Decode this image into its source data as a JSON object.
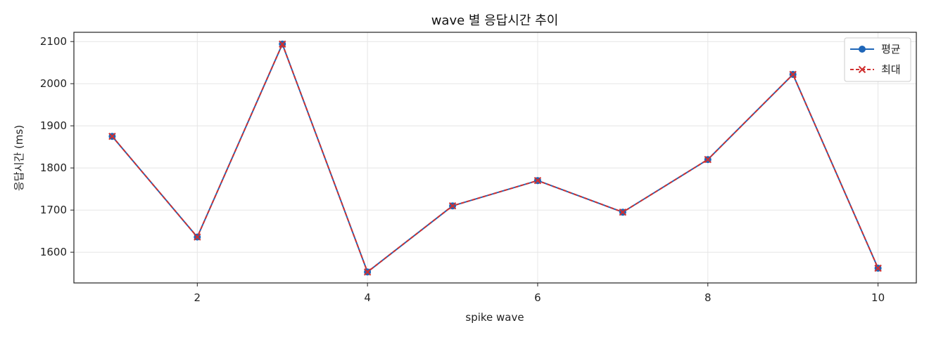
{
  "chart_data": {
    "type": "line",
    "title": "wave 별 응답시간 추이",
    "xlabel": "spike wave",
    "ylabel": "응답시간 (ms)",
    "x": [
      1,
      2,
      3,
      4,
      5,
      6,
      7,
      8,
      9,
      10
    ],
    "xlim": [
      0.55,
      10.45
    ],
    "ylim": [
      1527,
      2122
    ],
    "xticks": [
      2,
      4,
      6,
      8,
      10
    ],
    "yticks": [
      1600,
      1700,
      1800,
      1900,
      2000,
      2100
    ],
    "grid": true,
    "legend_position": "top-right",
    "series": [
      {
        "name": "평균",
        "values": [
          1875,
          1636,
          2094,
          1553,
          1710,
          1770,
          1695,
          1820,
          2022,
          1562
        ],
        "color": "#1f66b8",
        "marker": "circle",
        "linestyle": "solid"
      },
      {
        "name": "최대",
        "values": [
          1875,
          1636,
          2094,
          1553,
          1710,
          1770,
          1695,
          1820,
          2022,
          1562
        ],
        "color": "#d03030",
        "marker": "x",
        "linestyle": "dashed"
      }
    ]
  }
}
